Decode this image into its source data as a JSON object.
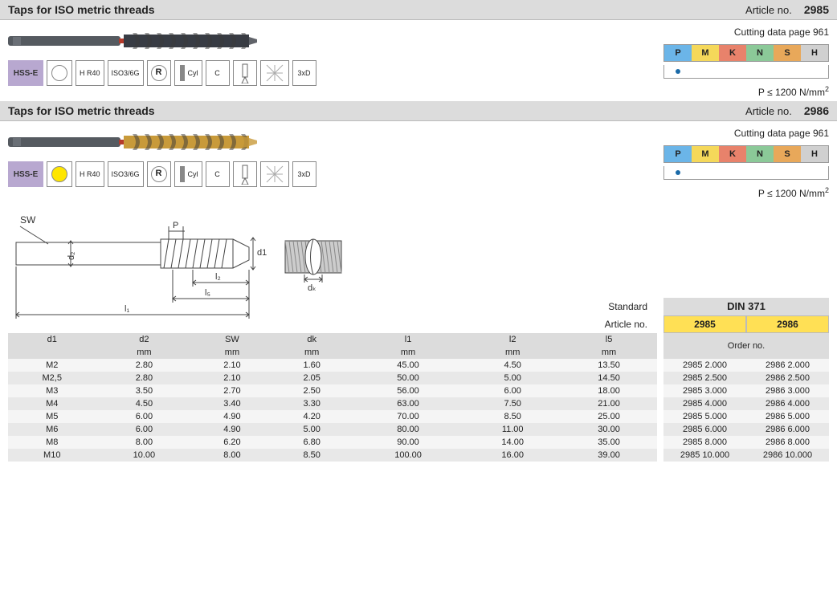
{
  "sections": [
    {
      "id": "2985",
      "title": "Taps for ISO metric threads",
      "article_label": "Article no.",
      "article_no": "2985",
      "cutting_data": "Cutting data page 961",
      "note": "P ≤ 1200 N/mm²",
      "specs": [
        "HSS-E",
        "circle-empty",
        "H R40",
        "ISO3/6G",
        "R-circle",
        "Cyl",
        "C",
        "flute",
        "cross",
        "3xD"
      ],
      "tool_colors": {
        "shank": "#555a60",
        "body": "#383c44",
        "ring": "#b53a2a"
      }
    },
    {
      "id": "2986",
      "title": "Taps for ISO metric threads",
      "article_label": "Article no.",
      "article_no": "2986",
      "cutting_data": "Cutting data page 961",
      "note": "P ≤ 1200 N/mm²",
      "specs": [
        "HSS-E",
        "circle-yellow",
        "H R40",
        "ISO3/6G",
        "R-circle",
        "Cyl",
        "C",
        "flute",
        "cross",
        "3xD"
      ],
      "tool_colors": {
        "shank": "#555a60",
        "body": "#c89a3a",
        "ring": "#b53a2a"
      }
    }
  ],
  "materials": {
    "letters": [
      "P",
      "M",
      "K",
      "N",
      "S",
      "H"
    ],
    "dots": [
      true,
      false,
      false,
      false,
      false,
      false
    ]
  },
  "standard_label": "Standard",
  "article_row_label": "Article no.",
  "din": "DIN 371",
  "article_cols": [
    "2985",
    "2986"
  ],
  "order_header": "Order no.",
  "table": {
    "columns": [
      "d1",
      "d2",
      "SW",
      "dk",
      "l1",
      "l2",
      "l5"
    ],
    "units": [
      "",
      "mm",
      "mm",
      "mm",
      "mm",
      "mm",
      "mm"
    ],
    "rows": [
      [
        "M2",
        "2.80",
        "2.10",
        "1.60",
        "45.00",
        "4.50",
        "13.50"
      ],
      [
        "M2,5",
        "2.80",
        "2.10",
        "2.05",
        "50.00",
        "5.00",
        "14.50"
      ],
      [
        "M3",
        "3.50",
        "2.70",
        "2.50",
        "56.00",
        "6.00",
        "18.00"
      ],
      [
        "M4",
        "4.50",
        "3.40",
        "3.30",
        "63.00",
        "7.50",
        "21.00"
      ],
      [
        "M5",
        "6.00",
        "4.90",
        "4.20",
        "70.00",
        "8.50",
        "25.00"
      ],
      [
        "M6",
        "6.00",
        "4.90",
        "5.00",
        "80.00",
        "11.00",
        "30.00"
      ],
      [
        "M8",
        "8.00",
        "6.20",
        "6.80",
        "90.00",
        "14.00",
        "35.00"
      ],
      [
        "M10",
        "10.00",
        "8.00",
        "8.50",
        "100.00",
        "16.00",
        "39.00"
      ]
    ]
  },
  "orders": [
    [
      "2985 2.000",
      "2986 2.000"
    ],
    [
      "2985 2.500",
      "2986 2.500"
    ],
    [
      "2985 3.000",
      "2986 3.000"
    ],
    [
      "2985 4.000",
      "2986 4.000"
    ],
    [
      "2985 5.000",
      "2986 5.000"
    ],
    [
      "2985 6.000",
      "2986 6.000"
    ],
    [
      "2985 8.000",
      "2986 8.000"
    ],
    [
      "2985 10.000",
      "2986 10.000"
    ]
  ],
  "diagram_labels": {
    "SW": "SW",
    "P": "P",
    "d1": "d1",
    "d2": "d₂",
    "dk": "dₖ",
    "l1": "l₁",
    "l2": "l₂",
    "l5": "l₅"
  }
}
